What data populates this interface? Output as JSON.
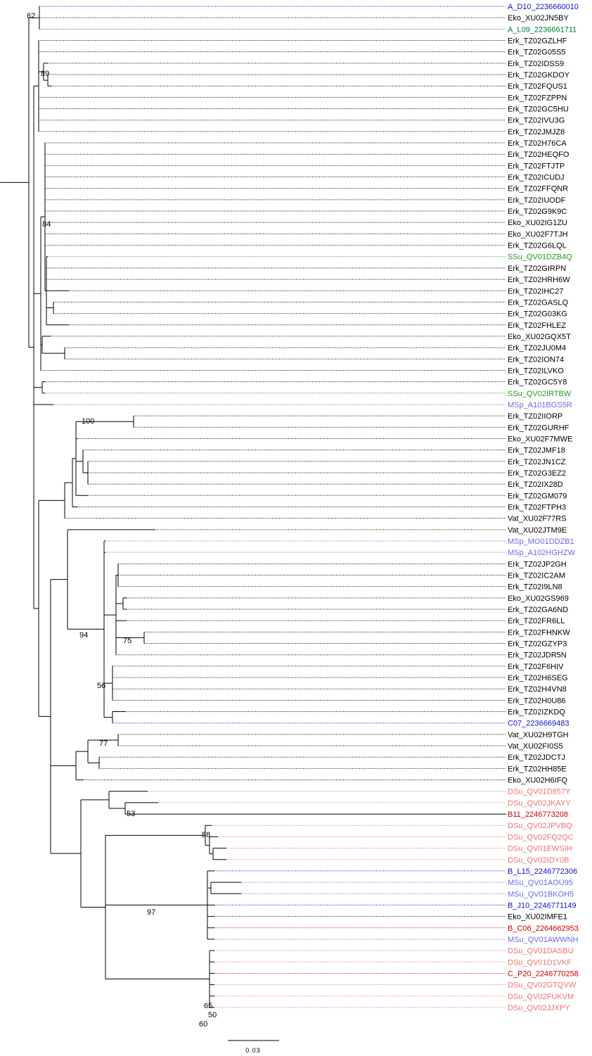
{
  "colors": {
    "black": "#000000",
    "dsu": "#f07070",
    "red": "#d00000",
    "blue": "#1010d0",
    "lightblue": "#6a6ae8",
    "green": "#1f9a1f",
    "darkgreen": "#007a33"
  },
  "scale_bar": {
    "label": "0.03"
  },
  "leaves": [
    {
      "label": "A_D10_2236660010",
      "color": "blue"
    },
    {
      "label": "Eko_XU02JN5BY",
      "color": "black"
    },
    {
      "label": "A_L09_2236661711",
      "color": "darkgreen"
    },
    {
      "label": "Erk_TZ02GZLHF",
      "color": "black"
    },
    {
      "label": "Erk_TZ02G05S5",
      "color": "black"
    },
    {
      "label": "Erk_TZ02IDSS9",
      "color": "black"
    },
    {
      "label": "Erk_TZ02GKDOY",
      "color": "black"
    },
    {
      "label": "Erk_TZ02FQUS1",
      "color": "black"
    },
    {
      "label": "Erk_TZ02FZPPN",
      "color": "black"
    },
    {
      "label": "Erk_TZ02GC5HU",
      "color": "black"
    },
    {
      "label": "Erk_TZ02IVU3G",
      "color": "black"
    },
    {
      "label": "Erk_TZ02JMJZ8",
      "color": "black"
    },
    {
      "label": "Erk_TZ02H76CA",
      "color": "black"
    },
    {
      "label": "Erk_TZ02HEQFO",
      "color": "black"
    },
    {
      "label": "Erk_TZ02FTJTP",
      "color": "black"
    },
    {
      "label": "Erk_TZ02ICUDJ",
      "color": "black"
    },
    {
      "label": "Erk_TZ02FFQNR",
      "color": "black"
    },
    {
      "label": "Erk_TZ02IUODF",
      "color": "black"
    },
    {
      "label": "Erk_TZ02G9K9C",
      "color": "black"
    },
    {
      "label": "Eko_XU02IG1ZU",
      "color": "black"
    },
    {
      "label": "Eko_XU02F7TJH",
      "color": "black"
    },
    {
      "label": "Erk_TZ02G6LQL",
      "color": "black"
    },
    {
      "label": "SSu_QV01DZB4Q",
      "color": "green"
    },
    {
      "label": "Erk_TZ02GIRPN",
      "color": "black"
    },
    {
      "label": "Erk_TZ02HRH6W",
      "color": "black"
    },
    {
      "label": "Erk_TZ02IHC27",
      "color": "black"
    },
    {
      "label": "Erk_TZ02GASLQ",
      "color": "black"
    },
    {
      "label": "Erk_TZ02G03KG",
      "color": "black"
    },
    {
      "label": "Erk_TZ02FHLEZ",
      "color": "black"
    },
    {
      "label": "Eko_XU02GQX5T",
      "color": "black"
    },
    {
      "label": "Erk_TZ02JU0M4",
      "color": "black"
    },
    {
      "label": "Erk_TZ02ION74",
      "color": "black"
    },
    {
      "label": "Erk_TZ02ILVKO",
      "color": "black"
    },
    {
      "label": "Erk_TZ02GC5Y8",
      "color": "black"
    },
    {
      "label": "SSu_QV02IRTBW",
      "color": "green"
    },
    {
      "label": "MSp_A101BGS5R",
      "color": "lightblue"
    },
    {
      "label": "Erk_TZ02IIORP",
      "color": "black"
    },
    {
      "label": "Erk_TZ02GURHF",
      "color": "black"
    },
    {
      "label": "Eko_XU02F7MWE",
      "color": "black"
    },
    {
      "label": "Erk_TZ02JMF18",
      "color": "black"
    },
    {
      "label": "Erk_TZ02JN1CZ",
      "color": "black"
    },
    {
      "label": "Erk_TZ02G3EZ2",
      "color": "black"
    },
    {
      "label": "Erk_TZ02IX28D",
      "color": "black"
    },
    {
      "label": "Erk_TZ02GM079",
      "color": "black"
    },
    {
      "label": "Erk_TZ02FTPH3",
      "color": "black"
    },
    {
      "label": "Vat_XU02F77RS",
      "color": "black"
    },
    {
      "label": "Vat_XU02JTM9E",
      "color": "black"
    },
    {
      "label": "MSp_MO01DDZB1",
      "color": "lightblue"
    },
    {
      "label": "MSp_A102HGHZW",
      "color": "lightblue"
    },
    {
      "label": "Erk_TZ02JP2GH",
      "color": "black"
    },
    {
      "label": "Erk_TZ02IC2AM",
      "color": "black"
    },
    {
      "label": "Erk_TZ02I9LN8",
      "color": "black"
    },
    {
      "label": "Eko_XU02GS969",
      "color": "black"
    },
    {
      "label": "Erk_TZ02GA6ND",
      "color": "black"
    },
    {
      "label": "Erk_TZ02FR6LL",
      "color": "black"
    },
    {
      "label": "Erk_TZ02FHNKW",
      "color": "black"
    },
    {
      "label": "Erk_TZ02GZYP3",
      "color": "black"
    },
    {
      "label": "Erk_TZ02JDR5N",
      "color": "black"
    },
    {
      "label": "Erk_TZ02F6HIV",
      "color": "black"
    },
    {
      "label": "Erk_TZ02H6SEG",
      "color": "black"
    },
    {
      "label": "Erk_TZ02H4VN8",
      "color": "black"
    },
    {
      "label": "Erk_TZ02H0U86",
      "color": "black"
    },
    {
      "label": "Erk_TZ02IZKDQ",
      "color": "black"
    },
    {
      "label": "C07_2236669483",
      "color": "blue"
    },
    {
      "label": "Vat_XU02H9TGH",
      "color": "black"
    },
    {
      "label": "Vat_XU02FI0S5",
      "color": "black"
    },
    {
      "label": "Erk_TZ02JDCTJ",
      "color": "black"
    },
    {
      "label": "Erk_TZ02HH85E",
      "color": "black"
    },
    {
      "label": "Eko_XU02H6IFQ",
      "color": "black"
    },
    {
      "label": "DSu_QV01D857Y",
      "color": "dsu"
    },
    {
      "label": "DSu_QV02JKAYY",
      "color": "dsu"
    },
    {
      "label": "B11_2246773208",
      "color": "red"
    },
    {
      "label": "DSu_QV02JPVBQ",
      "color": "dsu"
    },
    {
      "label": "DSu_QV02FQ2QC",
      "color": "dsu"
    },
    {
      "label": "DSu_QV01EWSIH",
      "color": "dsu"
    },
    {
      "label": "DSu_QV02IDY0B",
      "color": "dsu"
    },
    {
      "label": "B_L15_2246772306",
      "color": "blue"
    },
    {
      "label": "MSu_QV01AOU95",
      "color": "lightblue"
    },
    {
      "label": "MSu_QV01BKOH5",
      "color": "lightblue"
    },
    {
      "label": "B_J10_2246771149",
      "color": "blue"
    },
    {
      "label": "Eko_XU02IMFE1",
      "color": "black"
    },
    {
      "label": "B_C06_2264662953",
      "color": "red"
    },
    {
      "label": "MSu_QV01AWWNH",
      "color": "lightblue"
    },
    {
      "label": "DSu_QV01DASBU",
      "color": "dsu"
    },
    {
      "label": "DSu_QV01D1VKF",
      "color": "dsu"
    },
    {
      "label": "C_P20_2246770258",
      "color": "red"
    },
    {
      "label": "DSu_QV02GTQVW",
      "color": "dsu"
    },
    {
      "label": "DSu_QV02FUKVM",
      "color": "dsu"
    },
    {
      "label": "DSu_QV02JJXPY",
      "color": "dsu"
    }
  ],
  "supports": [
    {
      "label": "62"
    },
    {
      "label": "89"
    },
    {
      "label": "84"
    },
    {
      "label": "100"
    },
    {
      "label": "94"
    },
    {
      "label": "75"
    },
    {
      "label": "56"
    },
    {
      "label": "77"
    },
    {
      "label": "53"
    },
    {
      "label": "58"
    },
    {
      "label": "97"
    },
    {
      "label": "65"
    },
    {
      "label": "50"
    },
    {
      "label": "60"
    }
  ]
}
